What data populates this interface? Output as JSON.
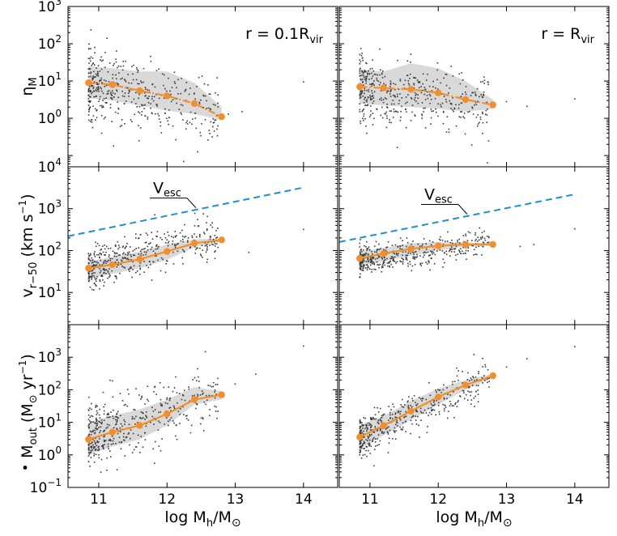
{
  "chart_data": [
    {
      "id": "p11",
      "type": "scatter",
      "row": 0,
      "col": 0,
      "yscale": "log",
      "ylabel_main": "η",
      "ylabel_sub": "M",
      "annotation": {
        "main": "r = 0.1R",
        "sub": "vir"
      },
      "xlim": [
        10.55,
        14.5
      ],
      "ylim": [
        0.05,
        1000
      ],
      "yticks": [
        {
          "e": 0,
          "main": "10",
          "exp": "0"
        },
        {
          "e": 1,
          "main": "10",
          "exp": "1"
        },
        {
          "e": 2,
          "main": "10",
          "exp": "2"
        },
        {
          "e": 3,
          "main": "10",
          "exp": "3"
        }
      ],
      "series": [
        {
          "name": "binned median",
          "color": "#f28e2c",
          "style": "dashdot",
          "x": [
            10.85,
            11.2,
            11.6,
            12.0,
            12.4,
            12.8
          ],
          "y": [
            9.0,
            8.0,
            5.5,
            4.0,
            2.5,
            1.1
          ],
          "band_lo": [
            3.5,
            3.0,
            2.2,
            1.6,
            1.3,
            0.9
          ],
          "band_hi": [
            25,
            22,
            18,
            18,
            9,
            2.0
          ]
        }
      ],
      "scatter_model": {
        "center": 8,
        "slope": -0.35,
        "sigma_dex": 0.45,
        "n": 450,
        "x0": 10.85
      },
      "scatter_outliers": [
        {
          "x": 12.9,
          "y": 1.3
        },
        {
          "x": 13.1,
          "y": 1.5
        },
        {
          "x": 14.0,
          "y": 9.5
        }
      ]
    },
    {
      "id": "p12",
      "type": "scatter",
      "row": 0,
      "col": 1,
      "yscale": "log",
      "annotation": {
        "main": "r = R",
        "sub": "vir"
      },
      "xlim": [
        10.55,
        14.5
      ],
      "ylim": [
        0.05,
        1000
      ],
      "series": [
        {
          "name": "binned median",
          "color": "#f28e2c",
          "style": "dashdot",
          "x": [
            10.85,
            11.2,
            11.6,
            12.0,
            12.4,
            12.8
          ],
          "y": [
            7.0,
            6.5,
            6.0,
            4.8,
            3.2,
            2.3
          ],
          "band_lo": [
            2.5,
            2.2,
            2.0,
            1.8,
            1.5,
            1.8
          ],
          "band_hi": [
            20,
            18,
            30,
            22,
            10,
            3.2
          ]
        }
      ],
      "scatter_model": {
        "center": 6.5,
        "slope": -0.22,
        "sigma_dex": 0.45,
        "n": 450,
        "x0": 10.85
      },
      "scatter_outliers": [
        {
          "x": 13.0,
          "y": 2.8
        },
        {
          "x": 13.3,
          "y": 2.1
        },
        {
          "x": 14.0,
          "y": 3.3
        }
      ]
    },
    {
      "id": "p21",
      "type": "scatter",
      "row": 1,
      "col": 0,
      "yscale": "log",
      "ylabel_main": "v",
      "ylabel_sub": "r−50",
      "ylabel_tail": " (km s",
      "ylabel_exp": "−1",
      "ylabel_end": ")",
      "xlim": [
        10.55,
        14.5
      ],
      "ylim": [
        1.7,
        10000
      ],
      "yticks": [
        {
          "e": 1,
          "main": "10",
          "exp": "1"
        },
        {
          "e": 2,
          "main": "10",
          "exp": "2"
        },
        {
          "e": 3,
          "main": "10",
          "exp": "3"
        },
        {
          "e": 4,
          "main": "10",
          "exp": "4"
        }
      ],
      "vesc": {
        "label_main": "V",
        "label_sub": "esc",
        "color": "#1f8fd0",
        "x": [
          10.55,
          14.0
        ],
        "y": [
          220,
          3200
        ]
      },
      "series": [
        {
          "name": "binned median",
          "color": "#f28e2c",
          "style": "solid",
          "x": [
            10.85,
            11.2,
            11.6,
            12.0,
            12.4,
            12.8
          ],
          "y": [
            38,
            46,
            62,
            95,
            150,
            180
          ],
          "band_lo": [
            22,
            28,
            38,
            60,
            120,
            170
          ],
          "band_hi": [
            55,
            70,
            95,
            140,
            185,
            195
          ]
        }
      ],
      "scatter_model": {
        "center": 38,
        "slope": 0.42,
        "sigma_dex": 0.25,
        "n": 450,
        "x0": 10.85
      },
      "scatter_outliers": [
        {
          "x": 13.2,
          "y": 90
        },
        {
          "x": 14.0,
          "y": 320
        }
      ]
    },
    {
      "id": "p22",
      "type": "scatter",
      "row": 1,
      "col": 1,
      "yscale": "log",
      "xlim": [
        10.55,
        14.5
      ],
      "ylim": [
        1.7,
        10000
      ],
      "vesc": {
        "label_main": "V",
        "label_sub": "esc",
        "color": "#1f8fd0",
        "x": [
          10.55,
          14.0
        ],
        "y": [
          160,
          2200
        ]
      },
      "series": [
        {
          "name": "binned median",
          "color": "#f28e2c",
          "style": "solid",
          "x": [
            10.85,
            11.2,
            11.6,
            12.0,
            12.4,
            12.8
          ],
          "y": [
            65,
            85,
            110,
            130,
            140,
            140
          ],
          "band_lo": [
            42,
            55,
            75,
            100,
            125,
            135
          ],
          "band_hi": [
            95,
            115,
            150,
            160,
            155,
            150
          ]
        }
      ],
      "scatter_model": {
        "center": 62,
        "slope": 0.2,
        "sigma_dex": 0.18,
        "n": 450,
        "x0": 10.85
      },
      "scatter_outliers": [
        {
          "x": 13.2,
          "y": 125
        },
        {
          "x": 13.4,
          "y": 140
        },
        {
          "x": 14.0,
          "y": 330
        }
      ]
    },
    {
      "id": "p31",
      "type": "scatter",
      "row": 2,
      "col": 0,
      "yscale": "log",
      "ylabel_main": "M",
      "ylabel_sub": "out",
      "ylabel_tail": " (M",
      "ylabel_sun": "⊙",
      "ylabel_tail2": " yr",
      "ylabel_exp": "−1",
      "ylabel_end": ")",
      "xlabel": {
        "main": "log M",
        "sub": "h",
        "mid": "/M",
        "sun": "⊙"
      },
      "xticks": [
        {
          "v": 11,
          "label": "11"
        },
        {
          "v": 12,
          "label": "12"
        },
        {
          "v": 13,
          "label": "13"
        },
        {
          "v": 14,
          "label": "14"
        }
      ],
      "xlim": [
        10.55,
        14.5
      ],
      "ylim": [
        0.1,
        10000
      ],
      "yticks": [
        {
          "e": -1,
          "main": "10",
          "exp": "−1"
        },
        {
          "e": 0,
          "main": "10",
          "exp": "0"
        },
        {
          "e": 1,
          "main": "10",
          "exp": "1"
        },
        {
          "e": 2,
          "main": "10",
          "exp": "2"
        },
        {
          "e": 3,
          "main": "10",
          "exp": "3"
        }
      ],
      "series": [
        {
          "name": "binned median",
          "color": "#f28e2c",
          "style": "solid",
          "x": [
            10.85,
            11.2,
            11.6,
            12.0,
            12.4,
            12.8
          ],
          "y": [
            3.0,
            5.0,
            8.0,
            18,
            50,
            70
          ],
          "band_lo": [
            1.0,
            1.8,
            3.0,
            8,
            35,
            50
          ],
          "band_hi": [
            10,
            16,
            25,
            50,
            120,
            90
          ]
        }
      ],
      "scatter_model": {
        "center": 3.5,
        "slope": 0.72,
        "sigma_dex": 0.45,
        "n": 450,
        "x0": 10.85
      },
      "scatter_outliers": [
        {
          "x": 13.0,
          "y": 150
        },
        {
          "x": 13.3,
          "y": 300
        },
        {
          "x": 14.0,
          "y": 2200
        }
      ]
    },
    {
      "id": "p32",
      "type": "scatter",
      "row": 2,
      "col": 1,
      "yscale": "log",
      "xlabel": {
        "main": "log M",
        "sub": "h",
        "mid": "/M",
        "sun": "⊙"
      },
      "xticks": [
        {
          "v": 11,
          "label": "11"
        },
        {
          "v": 12,
          "label": "12"
        },
        {
          "v": 13,
          "label": "13"
        },
        {
          "v": 14,
          "label": "14"
        }
      ],
      "xlim": [
        10.55,
        14.5
      ],
      "ylim": [
        0.1,
        10000
      ],
      "series": [
        {
          "name": "binned median",
          "color": "#f28e2c",
          "style": "solid",
          "x": [
            10.85,
            11.2,
            11.6,
            12.0,
            12.4,
            12.8
          ],
          "y": [
            3.5,
            8.0,
            22,
            60,
            140,
            270
          ],
          "band_lo": [
            1.5,
            4.0,
            12,
            35,
            100,
            230
          ],
          "band_hi": [
            8,
            16,
            45,
            110,
            200,
            310
          ]
        }
      ],
      "scatter_model": {
        "center": 3.5,
        "slope": 0.95,
        "sigma_dex": 0.3,
        "n": 450,
        "x0": 10.85
      },
      "scatter_outliers": [
        {
          "x": 13.0,
          "y": 500
        },
        {
          "x": 13.3,
          "y": 900
        },
        {
          "x": 14.0,
          "y": 2100
        }
      ]
    }
  ]
}
